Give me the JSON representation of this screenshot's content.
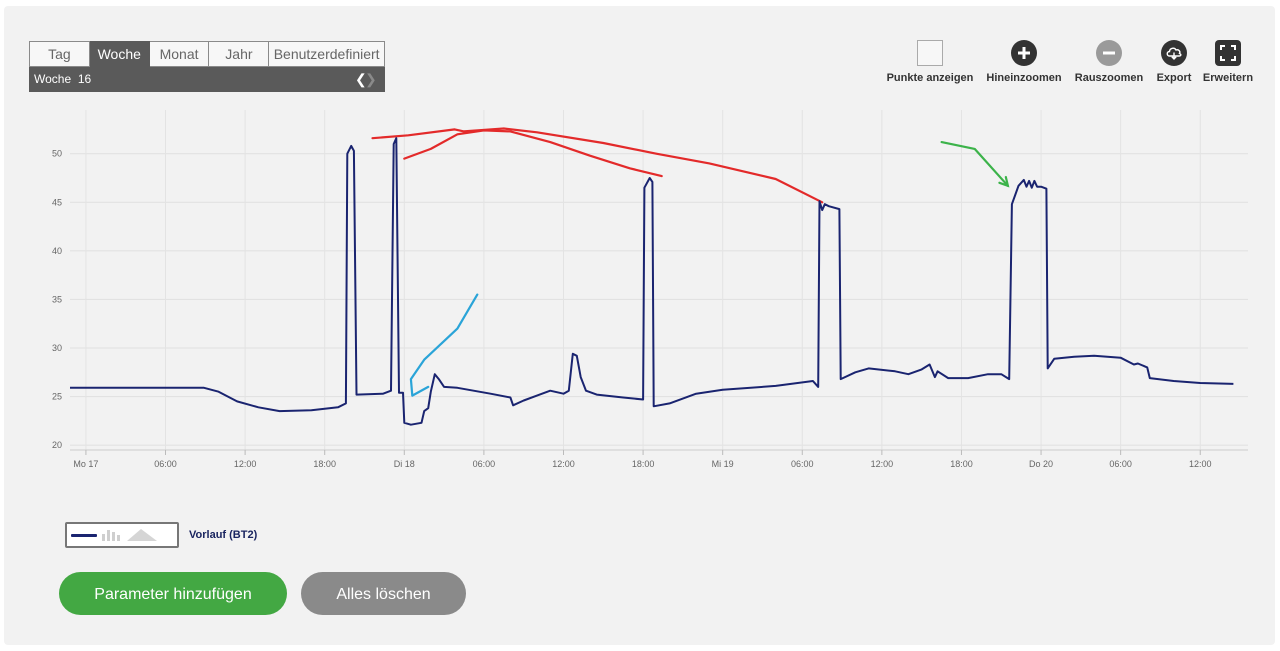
{
  "period": {
    "tabs": [
      "Tag",
      "Woche",
      "Monat",
      "Jahr",
      "Benutzerdefiniert"
    ],
    "active_tab": "Woche",
    "current_label": "Woche",
    "current_value": "16"
  },
  "toolbar": {
    "show_points": "Punkte anzeigen",
    "zoom_in": "Hineinzoomen",
    "zoom_out": "Rauszoomen",
    "export": "Export",
    "expand": "Erweitern"
  },
  "chart_data": {
    "type": "line",
    "x_unit": "hours since Mo 17 00:00",
    "x_ticks": [
      "Mo 17",
      "06:00",
      "12:00",
      "18:00",
      "Di 18",
      "06:00",
      "12:00",
      "18:00",
      "Mi 19",
      "06:00",
      "12:00",
      "18:00",
      "Do 20",
      "06:00",
      "12:00"
    ],
    "y_ticks": [
      20,
      25,
      30,
      35,
      40,
      45,
      50
    ],
    "ylim": [
      19.5,
      54.5
    ],
    "xlim": [
      -1.2,
      87.6
    ],
    "grid": true,
    "series": [
      {
        "name": "Vorlauf (BT2)",
        "color": "#1a2470",
        "points": [
          [
            -1.2,
            25.9
          ],
          [
            8.9,
            25.9
          ],
          [
            10.0,
            25.5
          ],
          [
            11.4,
            24.5
          ],
          [
            13.0,
            23.9
          ],
          [
            14.6,
            23.5
          ],
          [
            17.0,
            23.6
          ],
          [
            19.0,
            23.9
          ],
          [
            19.6,
            24.3
          ],
          [
            19.7,
            50.0
          ],
          [
            20.0,
            50.8
          ],
          [
            20.2,
            50.3
          ],
          [
            20.4,
            25.2
          ],
          [
            22.4,
            25.3
          ],
          [
            23.0,
            25.6
          ],
          [
            23.2,
            51.0
          ],
          [
            23.4,
            51.6
          ],
          [
            23.6,
            25.4
          ],
          [
            23.9,
            25.4
          ],
          [
            24.0,
            22.3
          ],
          [
            24.5,
            22.1
          ],
          [
            25.3,
            22.3
          ],
          [
            25.5,
            23.5
          ],
          [
            25.8,
            23.8
          ],
          [
            26.0,
            25.5
          ],
          [
            26.3,
            27.3
          ],
          [
            26.6,
            26.8
          ],
          [
            27.0,
            26.0
          ],
          [
            28.0,
            25.9
          ],
          [
            30.5,
            25.3
          ],
          [
            32.0,
            24.9
          ],
          [
            32.2,
            24.1
          ],
          [
            33.0,
            24.6
          ],
          [
            34.0,
            25.1
          ],
          [
            35.0,
            25.6
          ],
          [
            36.0,
            25.3
          ],
          [
            36.4,
            25.6
          ],
          [
            36.7,
            29.4
          ],
          [
            37.0,
            29.2
          ],
          [
            37.3,
            27.0
          ],
          [
            37.7,
            25.6
          ],
          [
            38.5,
            25.2
          ],
          [
            40.5,
            24.9
          ],
          [
            42.0,
            24.7
          ],
          [
            42.1,
            46.5
          ],
          [
            42.5,
            47.5
          ],
          [
            42.7,
            47.1
          ],
          [
            42.8,
            24.0
          ],
          [
            44.0,
            24.3
          ],
          [
            46.0,
            25.3
          ],
          [
            48.0,
            25.7
          ],
          [
            52.0,
            26.1
          ],
          [
            54.8,
            26.6
          ],
          [
            55.2,
            26.0
          ],
          [
            55.3,
            45.1
          ],
          [
            55.5,
            44.2
          ],
          [
            55.7,
            44.8
          ],
          [
            56.0,
            44.6
          ],
          [
            56.8,
            44.3
          ],
          [
            56.9,
            26.8
          ],
          [
            58.0,
            27.5
          ],
          [
            59.0,
            27.9
          ],
          [
            61.0,
            27.6
          ],
          [
            62.0,
            27.3
          ],
          [
            63.0,
            27.8
          ],
          [
            63.6,
            28.3
          ],
          [
            64.0,
            27.0
          ],
          [
            64.2,
            27.6
          ],
          [
            65.0,
            26.9
          ],
          [
            66.5,
            26.9
          ],
          [
            68.0,
            27.3
          ],
          [
            69.0,
            27.3
          ],
          [
            69.6,
            26.8
          ],
          [
            69.8,
            44.8
          ],
          [
            70.3,
            46.7
          ],
          [
            70.7,
            47.3
          ],
          [
            70.9,
            46.6
          ],
          [
            71.1,
            47.2
          ],
          [
            71.3,
            46.5
          ],
          [
            71.5,
            47.2
          ],
          [
            71.7,
            46.6
          ],
          [
            72.0,
            46.6
          ],
          [
            72.4,
            46.4
          ],
          [
            72.5,
            27.9
          ],
          [
            73.0,
            28.9
          ],
          [
            74.5,
            29.1
          ],
          [
            76.0,
            29.2
          ],
          [
            78.0,
            29.0
          ],
          [
            79.0,
            28.3
          ],
          [
            79.3,
            28.4
          ],
          [
            80.0,
            28.0
          ],
          [
            80.2,
            26.9
          ],
          [
            82.0,
            26.6
          ],
          [
            84.0,
            26.4
          ],
          [
            86.5,
            26.3
          ]
        ]
      }
    ]
  },
  "annotations": [
    {
      "color": "#e32a2a",
      "points": [
        [
          21.6,
          51.6
        ],
        [
          24.3,
          51.9
        ],
        [
          27.8,
          52.5
        ],
        [
          28.5,
          52.3
        ],
        [
          31.5,
          52.6
        ],
        [
          34.0,
          52.2
        ],
        [
          39.0,
          51.1
        ],
        [
          43.0,
          50.0
        ],
        [
          47.0,
          49.0
        ],
        [
          52.0,
          47.4
        ],
        [
          55.5,
          45.0
        ]
      ]
    },
    {
      "color": "#e32a2a",
      "points": [
        [
          24.0,
          49.5
        ],
        [
          26.0,
          50.5
        ],
        [
          28.0,
          52.0
        ],
        [
          30.0,
          52.4
        ],
        [
          32.0,
          52.3
        ],
        [
          35.0,
          51.2
        ],
        [
          38.0,
          49.8
        ],
        [
          41.0,
          48.5
        ],
        [
          43.4,
          47.7
        ]
      ]
    },
    {
      "color": "#2aa4d8",
      "points": [
        [
          29.5,
          35.5
        ],
        [
          28.0,
          32.0
        ],
        [
          25.5,
          28.8
        ],
        [
          24.5,
          26.8
        ],
        [
          24.6,
          25.1
        ],
        [
          25.8,
          26.0
        ]
      ]
    },
    {
      "color": "#3cb34a",
      "points": [
        [
          64.5,
          51.2
        ],
        [
          67.0,
          50.5
        ],
        [
          69.5,
          46.7
        ]
      ]
    }
  ],
  "legend": {
    "series_name": "Vorlauf (BT2)"
  },
  "actions": {
    "add_parameter": "Parameter hinzufügen",
    "clear_all": "Alles löschen"
  }
}
